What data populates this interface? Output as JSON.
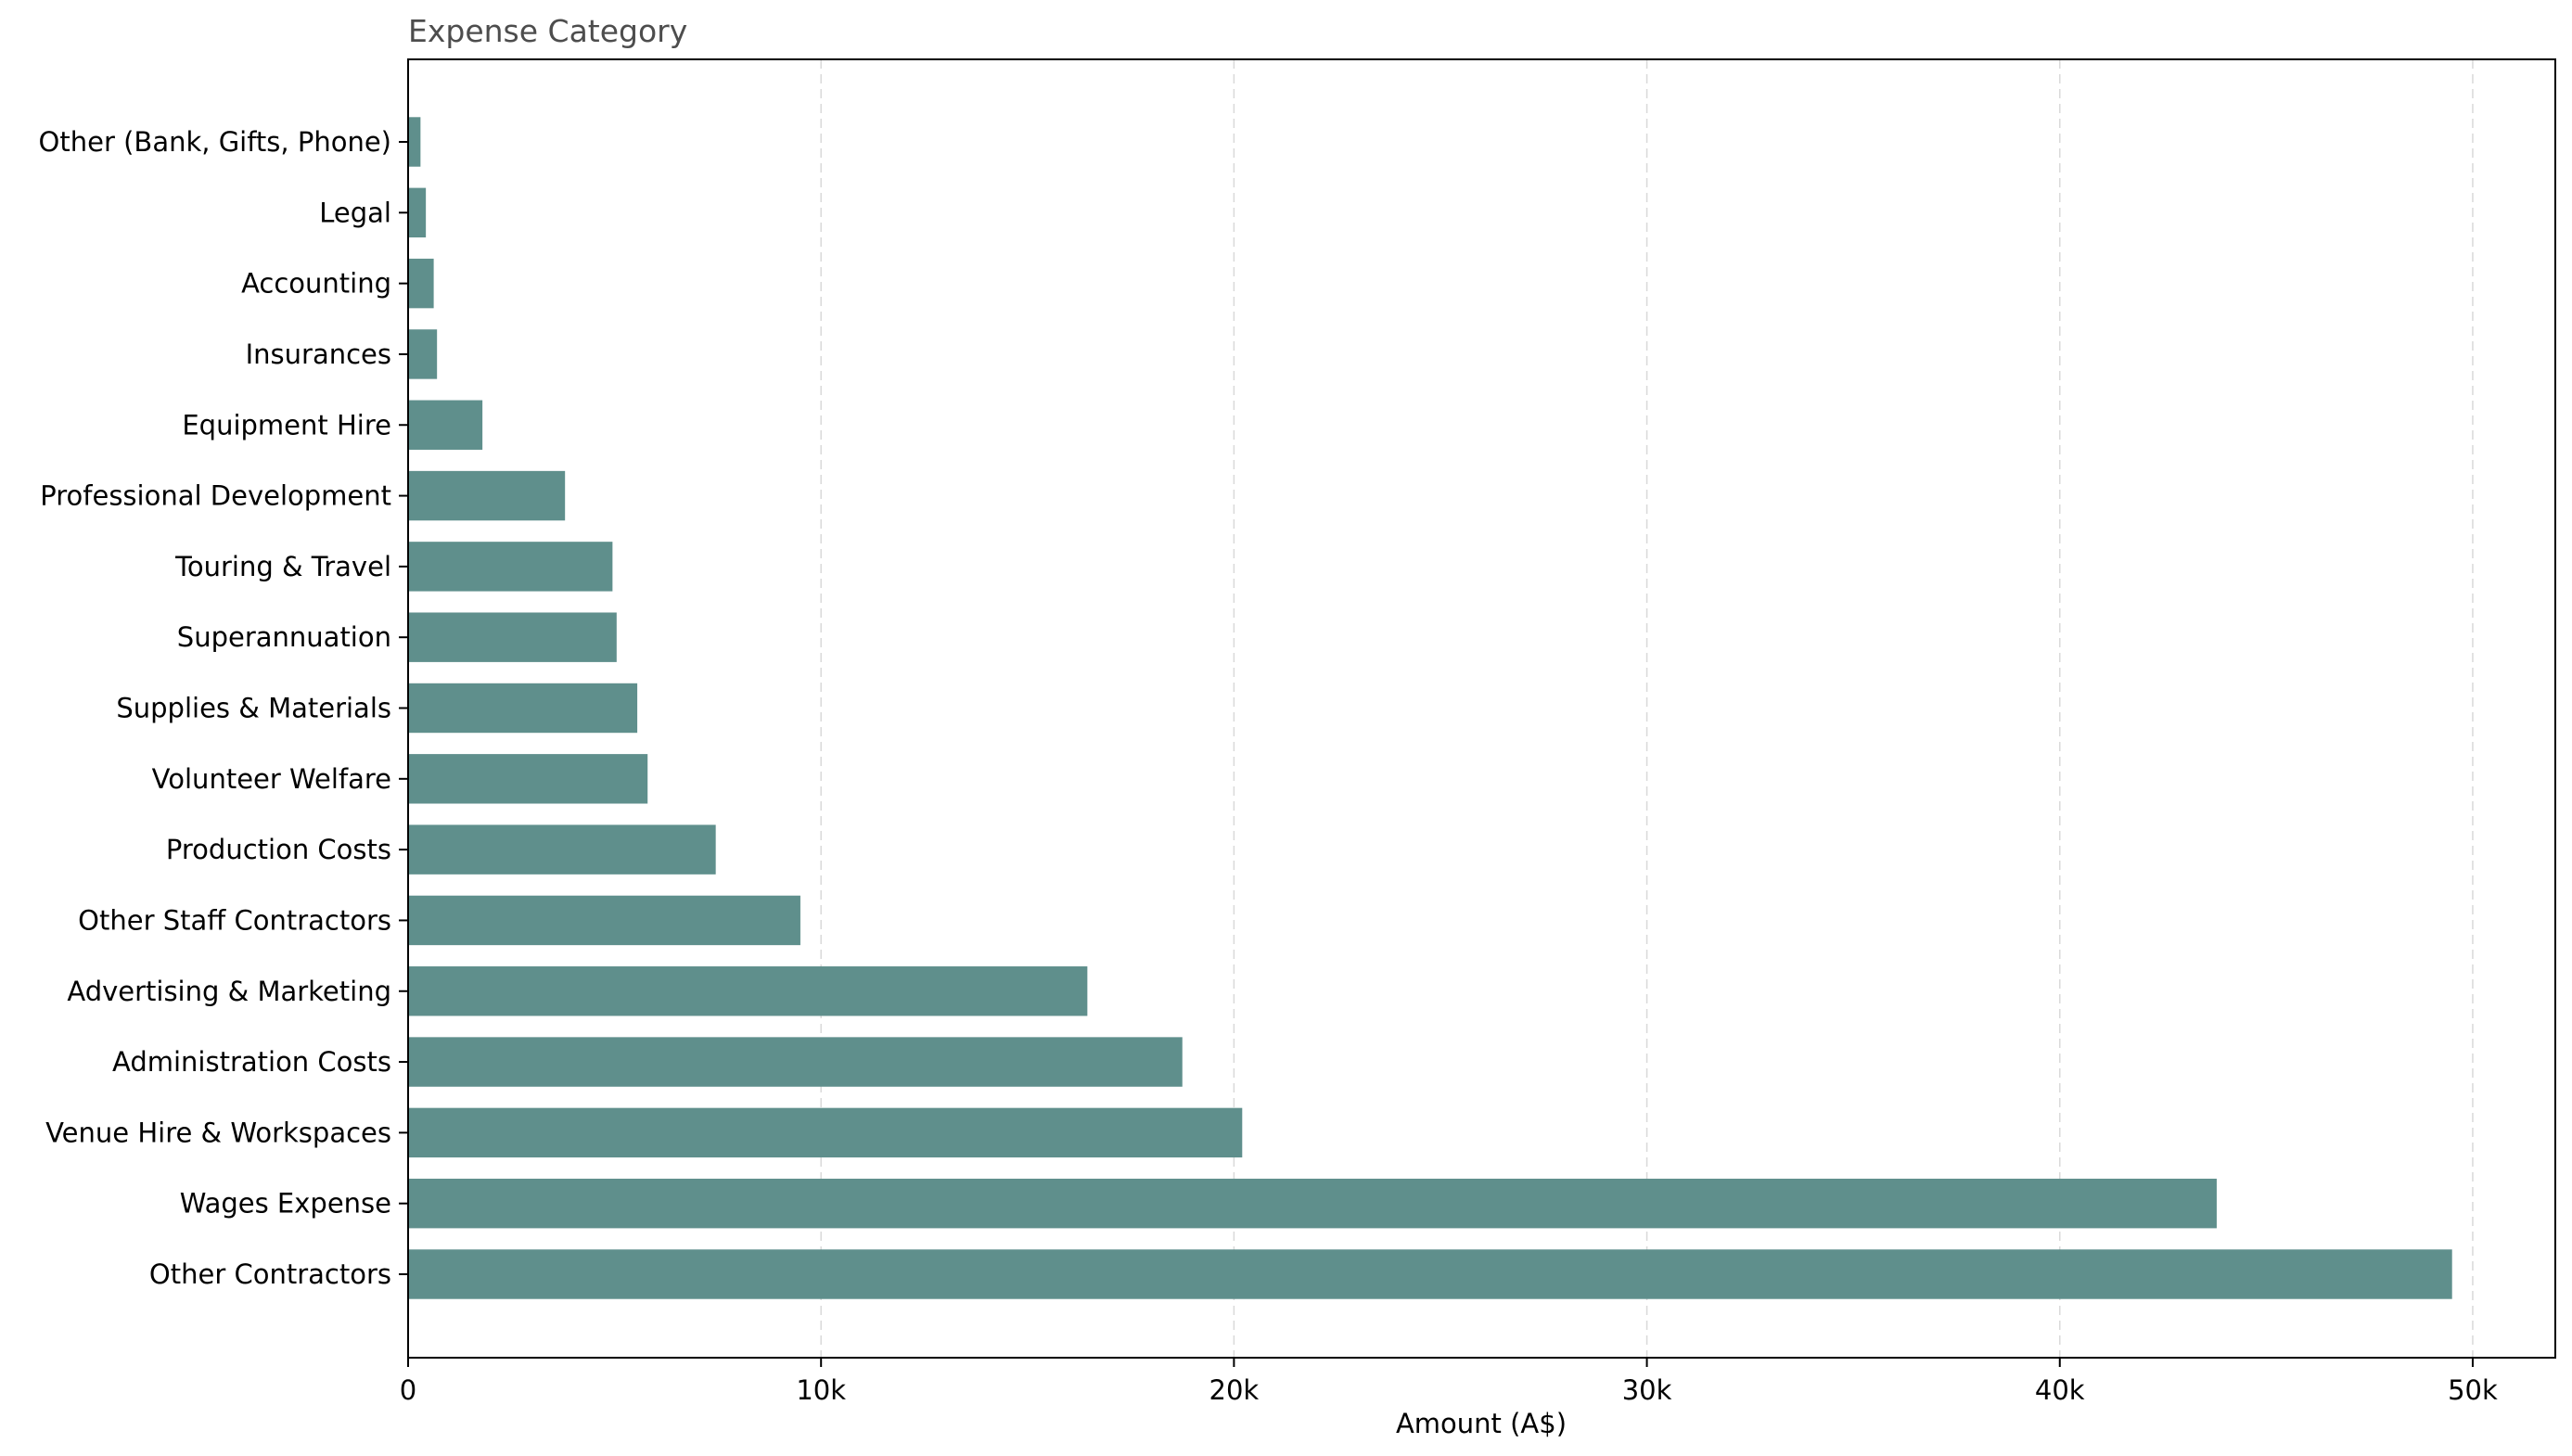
{
  "chart_data": {
    "type": "bar",
    "orientation": "horizontal",
    "title": "Expense Category",
    "xlabel": "Amount (A$)",
    "ylabel": "",
    "xlim": [
      0,
      52000
    ],
    "x_ticks": [
      0,
      10000,
      20000,
      30000,
      40000,
      50000
    ],
    "x_tick_labels": [
      "0",
      "10k",
      "20k",
      "30k",
      "40k",
      "50k"
    ],
    "grid": "x-axis, dashed",
    "bar_color": "#5f8f8c",
    "categories": [
      "Other Contractors",
      "Wages Expense",
      "Venue Hire & Workspaces",
      "Administration Costs",
      "Advertising & Marketing",
      "Other Staff Contractors",
      "Production Costs",
      "Volunteer Welfare",
      "Supplies & Materials",
      "Superannuation",
      "Touring & Travel",
      "Professional Development",
      "Equipment Hire",
      "Insurances",
      "Accounting",
      "Legal",
      "Other (Bank, Gifts, Phone)"
    ],
    "values": [
      49500,
      43800,
      20200,
      18750,
      16450,
      9500,
      7450,
      5800,
      5550,
      5050,
      4950,
      3800,
      1800,
      700,
      620,
      430,
      300
    ]
  }
}
